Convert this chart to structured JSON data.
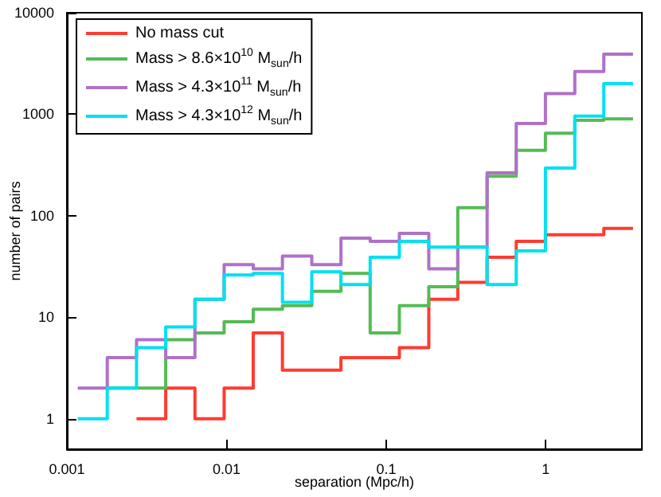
{
  "chart_data": {
    "type": "histogram",
    "xlabel": "separation (Mpc/h)",
    "ylabel": "number of pairs",
    "bins": [
      0.00117,
      0.00179,
      0.00273,
      0.00416,
      0.00634,
      0.00966,
      0.0147,
      0.0224,
      0.0342,
      0.0521,
      0.0794,
      0.121,
      0.185,
      0.281,
      0.429,
      0.653,
      0.995,
      1.52,
      2.31,
      3.52
    ],
    "series": [
      {
        "name": "No mass cut",
        "color": "#ff3b30",
        "bins": [
          0.00273,
          0.00416,
          0.00634,
          0.00966,
          0.0147,
          0.0224,
          0.0342,
          0.0521,
          0.0794,
          0.121,
          0.185,
          0.281,
          0.429,
          0.653,
          0.995,
          1.52,
          2.31,
          3.52
        ],
        "values": [
          1,
          2,
          1,
          2,
          7,
          3,
          3,
          4,
          4,
          5,
          15,
          22,
          39,
          56,
          65,
          65,
          75
        ]
      },
      {
        "name": "Mass > 8.6×10$^{10}$ M$_{sun}$/h",
        "color": "#55bb55",
        "bins": [
          0.00179,
          0.00273,
          0.00416,
          0.00634,
          0.00966,
          0.0147,
          0.0224,
          0.0342,
          0.0521,
          0.0794,
          0.121,
          0.185,
          0.281,
          0.429,
          0.653,
          0.995,
          1.52,
          2.31,
          3.52
        ],
        "values": [
          2,
          2,
          6,
          7,
          9,
          12,
          13,
          18,
          27,
          7,
          13,
          20,
          120,
          245,
          440,
          650,
          870,
          900
        ]
      },
      {
        "name": "Mass > 4.3×10$^{11}$ M$_{sun}$/h",
        "color": "#b070c8",
        "values": [
          2,
          4,
          6,
          4,
          15,
          33,
          30,
          40,
          33,
          60,
          56,
          67,
          30,
          49,
          265,
          810,
          1600,
          2640,
          3900
        ]
      },
      {
        "name": "Mass > 4.3×10$^{12}$ M$_{sun}$/h",
        "color": "#00e0f0",
        "values": [
          1,
          2,
          5,
          8,
          15,
          26,
          27,
          14,
          28,
          21,
          39,
          56,
          49,
          49,
          21,
          45,
          295,
          960,
          2000
        ]
      }
    ],
    "log": "xy",
    "xlim": [
      0.001,
      4
    ],
    "xticks": [
      0.001,
      0.01,
      0.1,
      1
    ],
    "ylim": [
      0.5,
      10000
    ],
    "yticks": [
      1,
      10,
      100,
      1000,
      10000
    ],
    "grid": false,
    "legend": "top left"
  }
}
